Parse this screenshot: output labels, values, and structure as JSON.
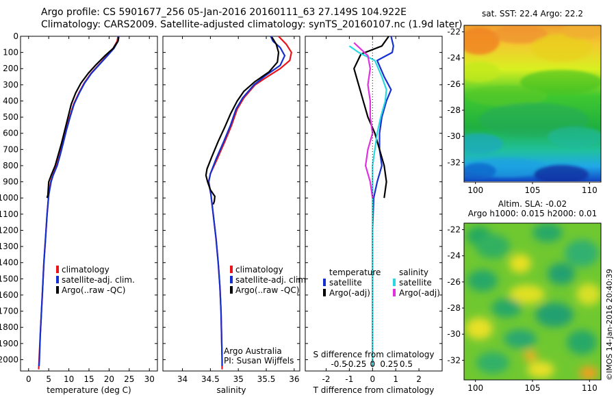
{
  "header": {
    "line1": "Argo profile: CS 5901677_256 05-Jan-2016 20160111_63 27.149S 104.922E",
    "line2": "Climatology: CARS2009. Satellite-adjusted climatology: synTS_20160107.nc (1.9d later)"
  },
  "footer": {
    "credit": "©IMOS 14-Jan-2016 20:40:39"
  },
  "colors": {
    "climatology": "#e8141a",
    "satellite": "#1530d0",
    "argo": "#000000",
    "sat_salinity": "#2ad8e0",
    "argo_salinity": "#e030e0"
  },
  "chart_data": [
    {
      "id": "temperature",
      "type": "line",
      "xlabel": "temperature (deg C)",
      "xlim": [
        -2,
        32
      ],
      "xticks": [
        0,
        5,
        10,
        15,
        20,
        25,
        30
      ],
      "ylim": [
        2070,
        0
      ],
      "yticks": [
        0,
        100,
        200,
        300,
        400,
        500,
        600,
        700,
        800,
        900,
        1000,
        1100,
        1200,
        1300,
        1400,
        1500,
        1600,
        1700,
        1800,
        1900,
        2000
      ],
      "legend": [
        "climatology",
        "satellite-adj. clim.",
        "Argo(..raw -QC)"
      ],
      "series": [
        {
          "name": "climatology",
          "color_key": "climatology",
          "points": [
            [
              22.2,
              0
            ],
            [
              22.0,
              30
            ],
            [
              21.0,
              75
            ],
            [
              19.5,
              120
            ],
            [
              17.5,
              175
            ],
            [
              15.5,
              230
            ],
            [
              13.8,
              290
            ],
            [
              12.5,
              350
            ],
            [
              11.2,
              420
            ],
            [
              10.2,
              500
            ],
            [
              9.3,
              580
            ],
            [
              8.5,
              660
            ],
            [
              7.8,
              730
            ],
            [
              7.0,
              800
            ],
            [
              6.0,
              860
            ],
            [
              5.5,
              900
            ],
            [
              5.0,
              980
            ],
            [
              4.6,
              1100
            ],
            [
              4.2,
              1250
            ],
            [
              3.8,
              1400
            ],
            [
              3.5,
              1550
            ],
            [
              3.2,
              1700
            ],
            [
              2.9,
              1850
            ],
            [
              2.6,
              2000
            ],
            [
              2.5,
              2060
            ]
          ]
        },
        {
          "name": "satellite-adj. clim.",
          "color_key": "satellite",
          "points": [
            [
              22.4,
              0
            ],
            [
              22.2,
              30
            ],
            [
              21.2,
              75
            ],
            [
              19.6,
              120
            ],
            [
              17.6,
              175
            ],
            [
              15.6,
              230
            ],
            [
              13.9,
              290
            ],
            [
              12.6,
              350
            ],
            [
              11.3,
              420
            ],
            [
              10.3,
              500
            ],
            [
              9.4,
              580
            ],
            [
              8.6,
              660
            ],
            [
              7.9,
              730
            ],
            [
              7.1,
              800
            ],
            [
              6.1,
              860
            ],
            [
              5.6,
              900
            ],
            [
              5.0,
              980
            ],
            [
              4.6,
              1100
            ],
            [
              4.2,
              1250
            ],
            [
              3.8,
              1400
            ],
            [
              3.5,
              1550
            ],
            [
              3.2,
              1700
            ],
            [
              2.9,
              1850
            ],
            [
              2.7,
              2000
            ],
            [
              2.6,
              2040
            ]
          ]
        },
        {
          "name": "Argo(..raw -QC)",
          "color_key": "argo",
          "points": [
            [
              22.4,
              5
            ],
            [
              22.2,
              30
            ],
            [
              21.0,
              75
            ],
            [
              19.0,
              120
            ],
            [
              16.8,
              175
            ],
            [
              14.8,
              230
            ],
            [
              13.0,
              290
            ],
            [
              11.7,
              350
            ],
            [
              10.6,
              420
            ],
            [
              9.8,
              500
            ],
            [
              9.0,
              580
            ],
            [
              8.2,
              660
            ],
            [
              7.4,
              730
            ],
            [
              6.6,
              800
            ],
            [
              5.6,
              860
            ],
            [
              5.0,
              900
            ],
            [
              4.8,
              980
            ],
            [
              4.6,
              1000
            ]
          ]
        }
      ]
    },
    {
      "id": "salinity",
      "type": "line",
      "xlabel": "salinity",
      "xlim": [
        33.65,
        36.1
      ],
      "xticks": [
        34,
        34.5,
        35,
        35.5,
        36
      ],
      "ylim": [
        2070,
        0
      ],
      "legend": [
        "climatology",
        "satellite-adj. clim.",
        "Argo(..raw -QC)"
      ],
      "annotation": [
        "Argo Australia",
        "PI: Susan Wijffels"
      ],
      "series": [
        {
          "name": "climatology",
          "color_key": "climatology",
          "points": [
            [
              35.72,
              0
            ],
            [
              35.86,
              50
            ],
            [
              35.95,
              100
            ],
            [
              35.92,
              150
            ],
            [
              35.75,
              200
            ],
            [
              35.52,
              250
            ],
            [
              35.3,
              300
            ],
            [
              35.1,
              380
            ],
            [
              34.98,
              450
            ],
            [
              34.88,
              550
            ],
            [
              34.76,
              650
            ],
            [
              34.62,
              760
            ],
            [
              34.5,
              850
            ],
            [
              34.47,
              900
            ],
            [
              34.51,
              980
            ],
            [
              34.55,
              1100
            ],
            [
              34.6,
              1250
            ],
            [
              34.64,
              1400
            ],
            [
              34.67,
              1550
            ],
            [
              34.69,
              1700
            ],
            [
              34.7,
              1850
            ],
            [
              34.71,
              2000
            ],
            [
              34.71,
              2060
            ]
          ]
        },
        {
          "name": "satellite-adj. clim.",
          "color_key": "satellite",
          "points": [
            [
              35.58,
              0
            ],
            [
              35.62,
              30
            ],
            [
              35.75,
              70
            ],
            [
              35.83,
              120
            ],
            [
              35.75,
              180
            ],
            [
              35.5,
              240
            ],
            [
              35.28,
              300
            ],
            [
              35.08,
              380
            ],
            [
              34.96,
              450
            ],
            [
              34.86,
              550
            ],
            [
              34.74,
              650
            ],
            [
              34.6,
              760
            ],
            [
              34.5,
              850
            ],
            [
              34.47,
              900
            ],
            [
              34.51,
              980
            ],
            [
              34.55,
              1100
            ],
            [
              34.6,
              1250
            ],
            [
              34.64,
              1400
            ],
            [
              34.67,
              1550
            ],
            [
              34.69,
              1700
            ],
            [
              34.7,
              1850
            ],
            [
              34.71,
              2000
            ],
            [
              34.71,
              2040
            ]
          ]
        },
        {
          "name": "Argo(..raw -QC)",
          "color_key": "argo",
          "points": [
            [
              35.6,
              5
            ],
            [
              35.68,
              50
            ],
            [
              35.72,
              100
            ],
            [
              35.7,
              160
            ],
            [
              35.55,
              220
            ],
            [
              35.3,
              280
            ],
            [
              35.1,
              340
            ],
            [
              34.98,
              400
            ],
            [
              34.86,
              480
            ],
            [
              34.76,
              560
            ],
            [
              34.64,
              650
            ],
            [
              34.52,
              750
            ],
            [
              34.44,
              820
            ],
            [
              34.42,
              860
            ],
            [
              34.45,
              900
            ],
            [
              34.5,
              950
            ],
            [
              34.58,
              990
            ],
            [
              34.57,
              1020
            ],
            [
              34.55,
              1040
            ]
          ]
        }
      ]
    },
    {
      "id": "difference",
      "type": "line",
      "xlabel": "T difference from climatology",
      "xlabel2": "S difference from climatology",
      "xlim": [
        -2.9,
        3.0
      ],
      "xticks": [
        -2,
        -1,
        0,
        1,
        2
      ],
      "xticks2": [
        -0.5,
        -0.25,
        0,
        0.25,
        0.5
      ],
      "ylim": [
        2070,
        0
      ],
      "legend_headers": [
        "temperature",
        "salinity"
      ],
      "legend": [
        "satellite",
        "Argo(-adj)",
        "satellite",
        "Argo(-adj)"
      ],
      "series": [
        {
          "name": "satellite",
          "group": "temperature",
          "color_key": "satellite",
          "points": [
            [
              0.8,
              0
            ],
            [
              0.9,
              60
            ],
            [
              0.85,
              100
            ],
            [
              0.2,
              150
            ],
            [
              0.5,
              250
            ],
            [
              0.8,
              330
            ],
            [
              0.6,
              400
            ],
            [
              0.4,
              500
            ],
            [
              0.3,
              600
            ],
            [
              0.3,
              700
            ],
            [
              0.4,
              800
            ],
            [
              0.2,
              900
            ],
            [
              0.05,
              1000
            ],
            [
              0.0,
              1200
            ],
            [
              0.0,
              1600
            ],
            [
              0.0,
              2040
            ]
          ]
        },
        {
          "name": "Argo(-adj)",
          "group": "temperature",
          "color_key": "argo",
          "points": [
            [
              0.7,
              0
            ],
            [
              0.4,
              60
            ],
            [
              -0.5,
              110
            ],
            [
              -0.8,
              200
            ],
            [
              -0.6,
              300
            ],
            [
              -0.4,
              400
            ],
            [
              -0.2,
              500
            ],
            [
              0.1,
              600
            ],
            [
              0.3,
              700
            ],
            [
              0.5,
              800
            ],
            [
              0.6,
              900
            ],
            [
              0.5,
              1000
            ]
          ]
        },
        {
          "name": "satellite",
          "group": "salinity",
          "color_key": "sat_salinity",
          "points": [
            [
              -1.0,
              60
            ],
            [
              -0.6,
              100
            ],
            [
              0.1,
              150
            ],
            [
              0.4,
              250
            ],
            [
              0.6,
              330
            ],
            [
              0.55,
              400
            ],
            [
              0.35,
              500
            ],
            [
              0.2,
              600
            ],
            [
              0.1,
              700
            ],
            [
              0.0,
              800
            ],
            [
              0.0,
              900
            ],
            [
              0.0,
              1000
            ],
            [
              0.0,
              1200
            ],
            [
              0.0,
              1600
            ],
            [
              0.0,
              2040
            ]
          ]
        },
        {
          "name": "Argo(-adj)",
          "group": "salinity",
          "color_key": "argo_salinity",
          "points": [
            [
              -0.8,
              40
            ],
            [
              -0.5,
              80
            ],
            [
              -0.2,
              120
            ],
            [
              -0.1,
              200
            ],
            [
              -0.2,
              300
            ],
            [
              -0.1,
              400
            ],
            [
              -0.1,
              500
            ],
            [
              0.0,
              600
            ],
            [
              -0.2,
              700
            ],
            [
              -0.3,
              800
            ],
            [
              -0.1,
              900
            ],
            [
              0.0,
              1000
            ]
          ]
        }
      ]
    },
    {
      "id": "sst-map",
      "type": "heatmap",
      "title": "sat. SST: 22.4 Argo: 22.2",
      "xlim": [
        99,
        111
      ],
      "xticks": [
        100,
        105,
        110
      ],
      "ylim": [
        -33.5,
        -21.5
      ],
      "yticks": [
        -22,
        -24,
        -26,
        -28,
        -30,
        -32
      ]
    },
    {
      "id": "sla-map",
      "type": "heatmap",
      "title": "Altim. SLA: -0.02",
      "subtitle": "Argo h1000: 0.015 h2000: 0.01",
      "xlim": [
        99,
        111
      ],
      "xticks": [
        100,
        105,
        110
      ],
      "ylim": [
        -33.5,
        -21.5
      ],
      "yticks": [
        -22,
        -24,
        -26,
        -28,
        -30,
        -32
      ]
    }
  ]
}
